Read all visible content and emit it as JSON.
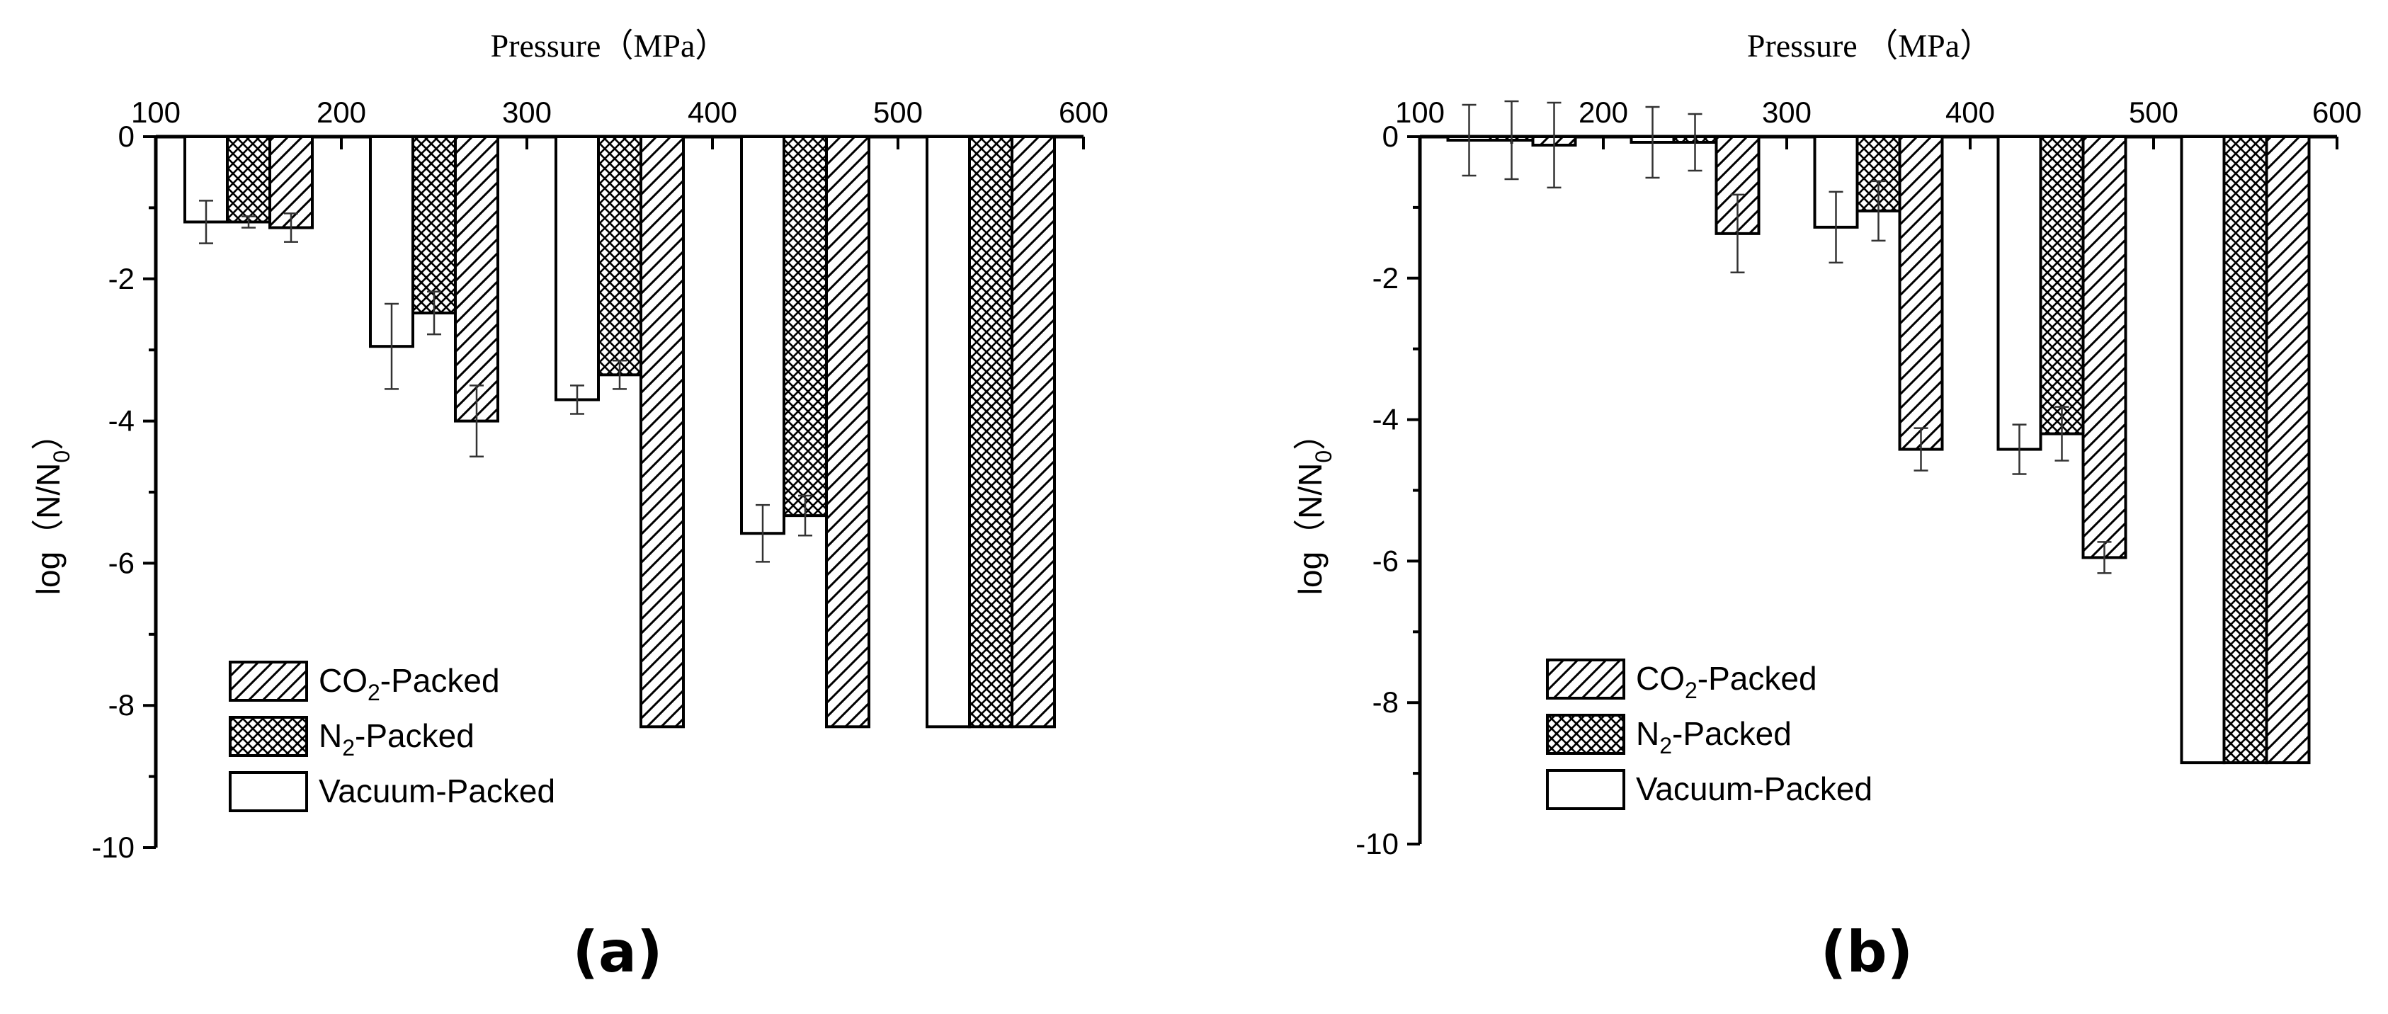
{
  "chart_data": [
    {
      "type": "bar",
      "panel_label": "(a)",
      "xlabel": "Pressure（MPa）",
      "ylabel": "log（N/N0）",
      "ylabel_main": "log（N/N",
      "ylabel_sub": "0",
      "ylabel_close": "）",
      "xlim": [
        100,
        600
      ],
      "ylim": [
        -10,
        0
      ],
      "xticks": [
        100,
        200,
        300,
        400,
        500,
        600
      ],
      "yticks": [
        0,
        -2,
        -4,
        -6,
        -8,
        -10
      ],
      "x_axis_position": "top",
      "legend_position": "bottom-left",
      "categories": [
        150,
        250,
        350,
        450,
        550
      ],
      "series": [
        {
          "name": "Vacuum-Packed",
          "pattern": "none",
          "values": [
            -1.2,
            -2.95,
            -3.7,
            -5.58,
            -8.3
          ],
          "errors": [
            0.3,
            0.6,
            0.2,
            0.4,
            0
          ]
        },
        {
          "name": "N2-Packed",
          "pattern": "crosshatch",
          "values": [
            -1.2,
            -2.48,
            -3.35,
            -5.33,
            -8.3
          ],
          "errors": [
            0.08,
            0.3,
            0.2,
            0.28,
            0
          ]
        },
        {
          "name": "CO2-Packed",
          "pattern": "diagonal",
          "values": [
            -1.28,
            -4.0,
            -8.3,
            -8.3,
            -8.3
          ],
          "errors": [
            0.2,
            0.5,
            0,
            0,
            0
          ]
        }
      ],
      "legend": [
        {
          "pattern": "diagonal",
          "pre": "CO",
          "sub": "2",
          "post": "-Packed"
        },
        {
          "pattern": "crosshatch",
          "pre": "N",
          "sub": "2",
          "post": "-Packed"
        },
        {
          "pattern": "none",
          "pre": "Vacuum-Packed",
          "sub": "",
          "post": ""
        }
      ]
    },
    {
      "type": "bar",
      "panel_label": "(b)",
      "xlabel": "Pressure （MPa）",
      "ylabel": "log（N/N0）",
      "ylabel_main": "log（N/N",
      "ylabel_sub": "0",
      "ylabel_close": "）",
      "xlim": [
        100,
        600
      ],
      "ylim": [
        -10,
        0
      ],
      "xticks": [
        100,
        200,
        300,
        400,
        500,
        600
      ],
      "yticks": [
        0,
        -2,
        -4,
        -6,
        -8,
        -10
      ],
      "x_axis_position": "top",
      "legend_position": "bottom-left",
      "categories": [
        150,
        250,
        350,
        450,
        550
      ],
      "series": [
        {
          "name": "Vacuum-Packed",
          "pattern": "none",
          "values": [
            -0.05,
            -0.08,
            -1.28,
            -4.42,
            -8.85
          ],
          "errors": [
            0.5,
            0.5,
            0.5,
            0.35,
            0
          ]
        },
        {
          "name": "N2-Packed",
          "pattern": "crosshatch",
          "values": [
            -0.05,
            -0.08,
            -1.05,
            -4.2,
            -8.85
          ],
          "errors": [
            0.55,
            0.4,
            0.42,
            0.38,
            0
          ]
        },
        {
          "name": "CO2-Packed",
          "pattern": "diagonal",
          "values": [
            -0.12,
            -1.37,
            -4.42,
            -5.95,
            -8.85
          ],
          "errors": [
            0.6,
            0.55,
            0.3,
            0.22,
            0
          ]
        }
      ],
      "legend": [
        {
          "pattern": "diagonal",
          "pre": "CO",
          "sub": "2",
          "post": "-Packed"
        },
        {
          "pattern": "crosshatch",
          "pre": "N",
          "sub": "2",
          "post": "-Packed"
        },
        {
          "pattern": "none",
          "pre": "Vacuum-Packed",
          "sub": "",
          "post": ""
        }
      ]
    }
  ]
}
